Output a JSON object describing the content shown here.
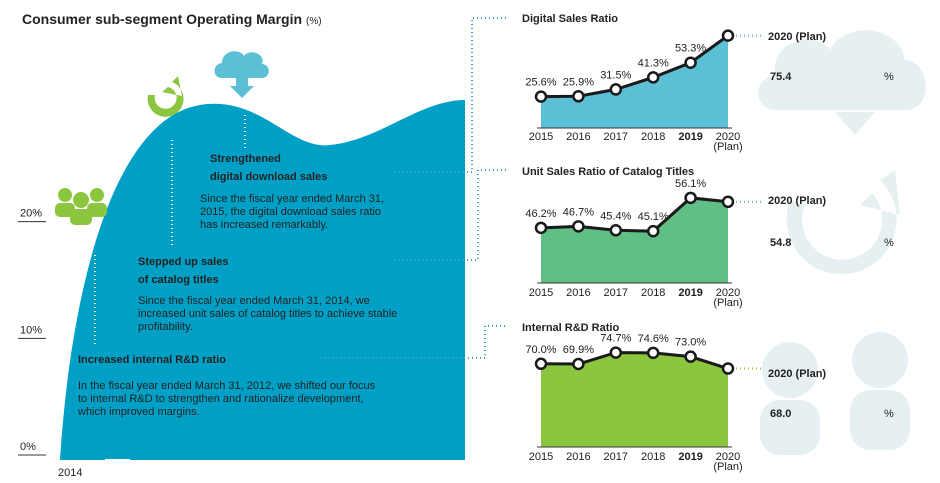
{
  "title": "Consumer sub-segment Operating Margin",
  "unit": "(%)",
  "annotations": [
    {
      "heading": [
        "Strengthened",
        "digital download sales"
      ],
      "body": [
        "Since the fiscal year ended March 31,",
        "2015, the digital download sales ratio",
        "has increased remarkably."
      ]
    },
    {
      "heading": [
        "Stepped up sales",
        "of catalog titles"
      ],
      "body": [
        "Since the fiscal year ended March 31, 2014, we",
        "increased unit sales of catalog titles to achieve stable",
        "profitability."
      ]
    },
    {
      "heading": [
        "Increased internal R&D ratio"
      ],
      "body": [
        "In the fiscal year ended March 31, 2012, we shifted our focus",
        "to internal R&D to strengthen and rationalize development,",
        "which improved margins."
      ]
    }
  ],
  "chart_data": [
    {
      "type": "shape",
      "x_label": "2014",
      "color": "#00a0c6",
      "ylim": [
        0,
        30
      ],
      "yticks": [
        {
          "value": 0,
          "label": "0%"
        },
        {
          "value": 10,
          "label": "10%"
        },
        {
          "value": 20,
          "label": "20%"
        }
      ]
    },
    {
      "type": "area",
      "title": "Digital Sales Ratio",
      "categories": [
        "2015",
        "2016",
        "2017",
        "2018",
        "2019",
        "2020"
      ],
      "category_note": "(Plan)",
      "bold_category": 4,
      "values": [
        25.6,
        25.9,
        31.5,
        41.3,
        53.3,
        75.4
      ],
      "value_labels": [
        "25.6%",
        "25.9%",
        "31.5%",
        "41.3%",
        "53.3%",
        "75.4"
      ],
      "plan_label": "2020 (Plan)",
      "plan_unit": "%",
      "ylim": [
        0,
        80
      ],
      "color": "#5bbfd6"
    },
    {
      "type": "area",
      "title": "Unit Sales Ratio of Catalog Titles",
      "categories": [
        "2015",
        "2016",
        "2017",
        "2018",
        "2019",
        "2020"
      ],
      "category_note": "(Plan)",
      "bold_category": 4,
      "values": [
        46.2,
        46.7,
        45.4,
        45.1,
        56.1,
        54.8
      ],
      "value_labels": [
        "46.2%",
        "46.7%",
        "45.4%",
        "45.1%",
        "56.1%",
        "54.8"
      ],
      "plan_label": "2020 (Plan)",
      "plan_unit": "%",
      "ylim": [
        28,
        61
      ],
      "color": "#5fbf85"
    },
    {
      "type": "area",
      "title": "Internal R&D Ratio",
      "categories": [
        "2015",
        "2016",
        "2017",
        "2018",
        "2019",
        "2020"
      ],
      "category_note": "(Plan)",
      "bold_category": 4,
      "values": [
        70.0,
        69.9,
        74.7,
        74.6,
        73.0,
        68.0
      ],
      "value_labels": [
        "70.0%",
        "69.9%",
        "74.7%",
        "74.6%",
        "73.0%",
        "68.0"
      ],
      "plan_label": "2020 (Plan)",
      "plan_unit": "%",
      "ylim": [
        35,
        80
      ],
      "color": "#8cc63f"
    }
  ]
}
